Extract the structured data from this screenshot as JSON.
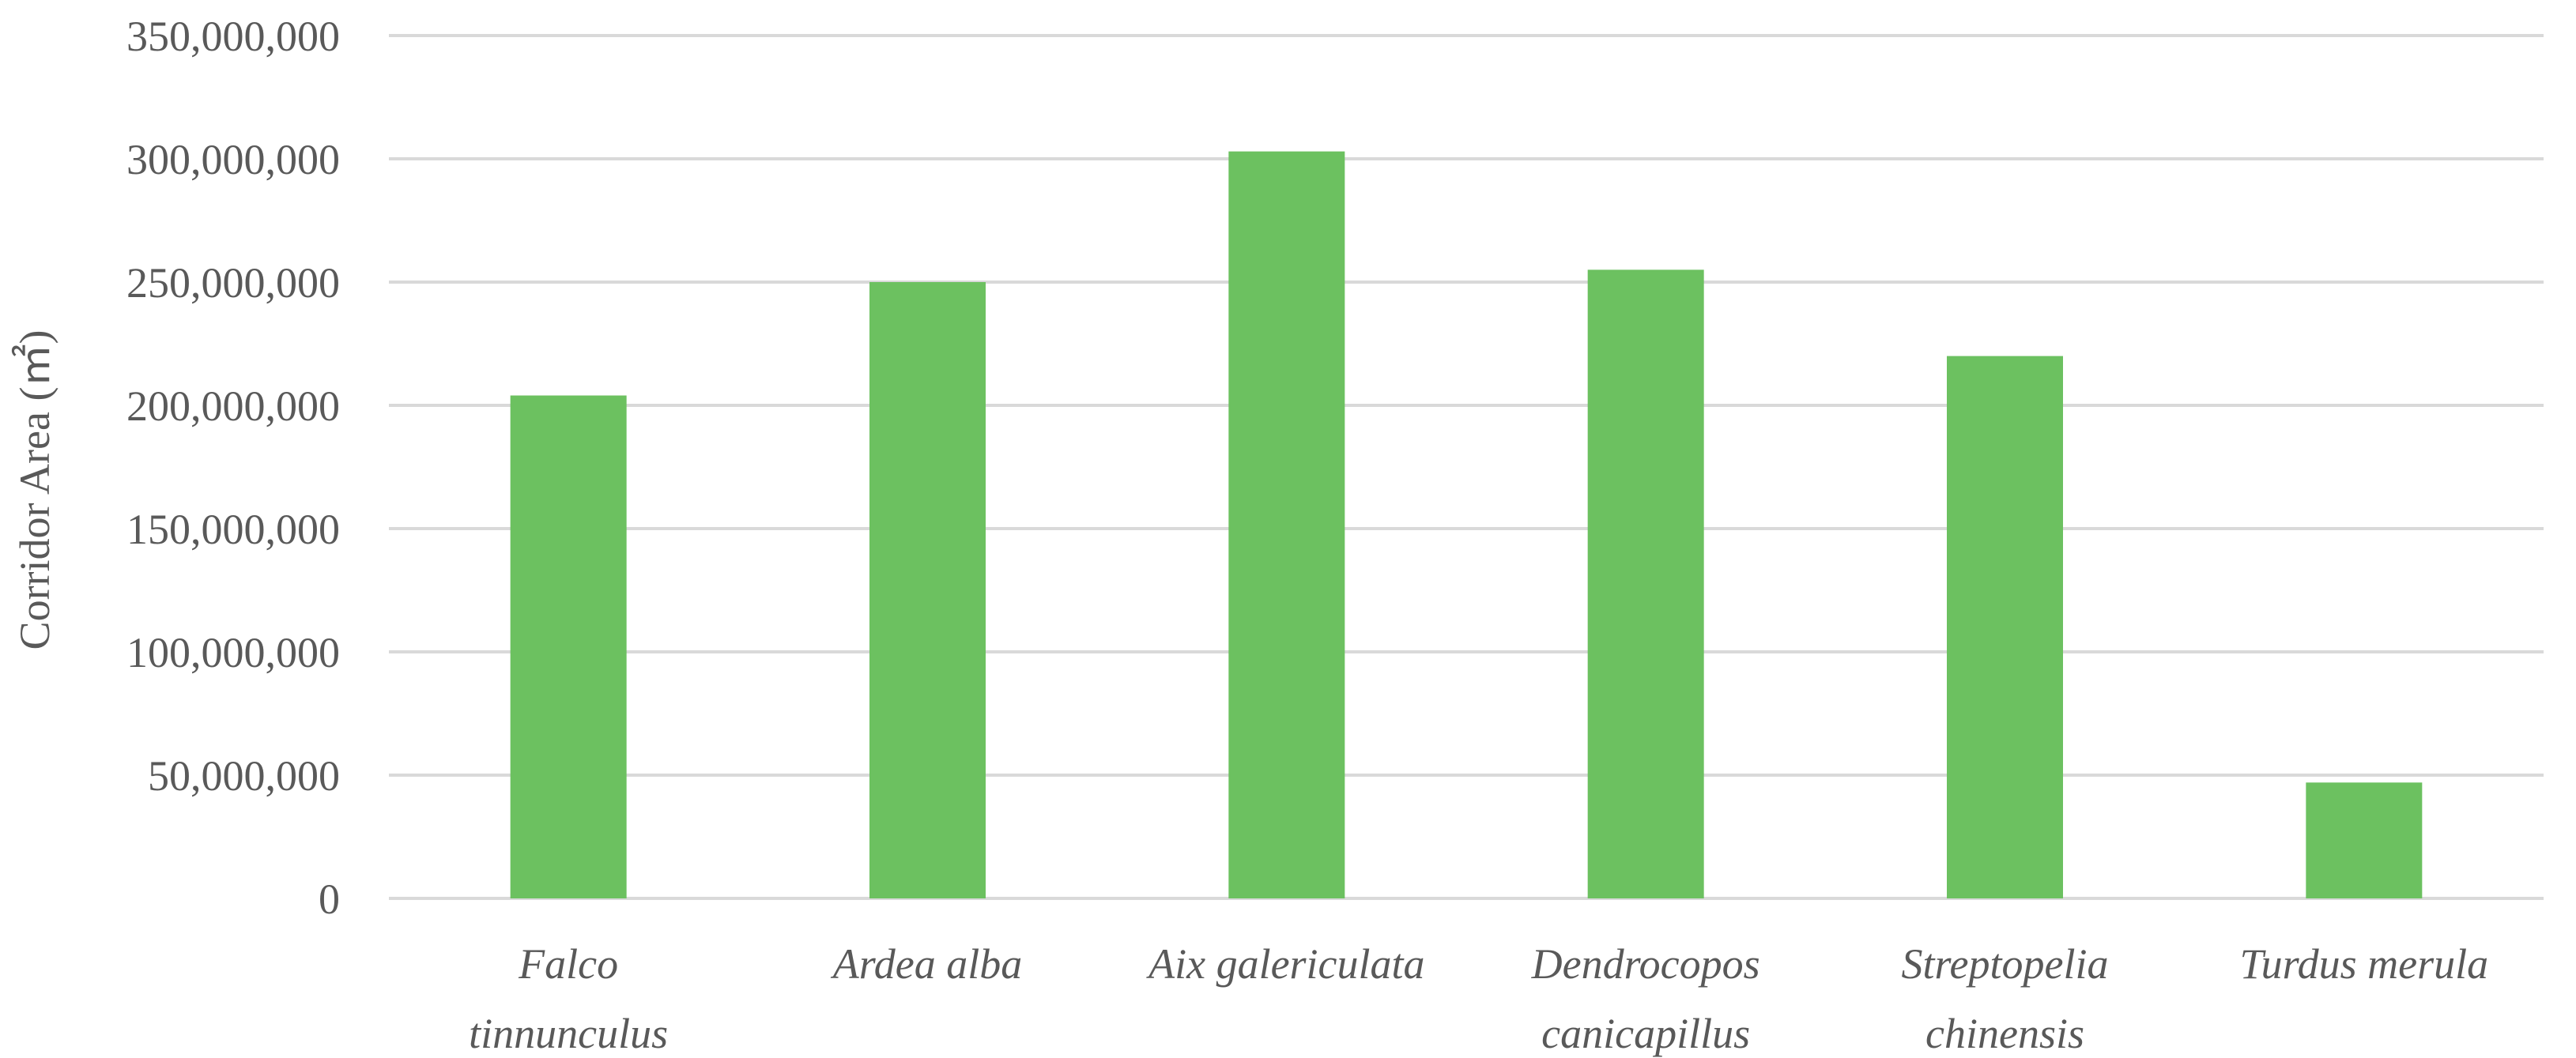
{
  "chart_data": {
    "type": "bar",
    "title": "",
    "xlabel": "",
    "ylabel": "Corridor Area (㎡)",
    "ylim": [
      0,
      350000000
    ],
    "yticks": [
      0,
      50000000,
      100000000,
      150000000,
      200000000,
      250000000,
      300000000,
      350000000
    ],
    "ytick_labels": [
      "0",
      "50,000,000",
      "100,000,000",
      "150,000,000",
      "200,000,000",
      "250,000,000",
      "300,000,000",
      "350,000,000"
    ],
    "categories": [
      [
        "Falco",
        "tinnunculus"
      ],
      [
        "Ardea alba"
      ],
      [
        "Aix galericulata"
      ],
      [
        "Dendrocopos",
        "canicapillus"
      ],
      [
        "Streptopelia",
        "chinensis"
      ],
      [
        "Turdus merula"
      ]
    ],
    "values": [
      204000000,
      250000000,
      303000000,
      255000000,
      220000000,
      47000000
    ],
    "bar_color": "#6cc160",
    "grid": true,
    "legend": "none"
  }
}
